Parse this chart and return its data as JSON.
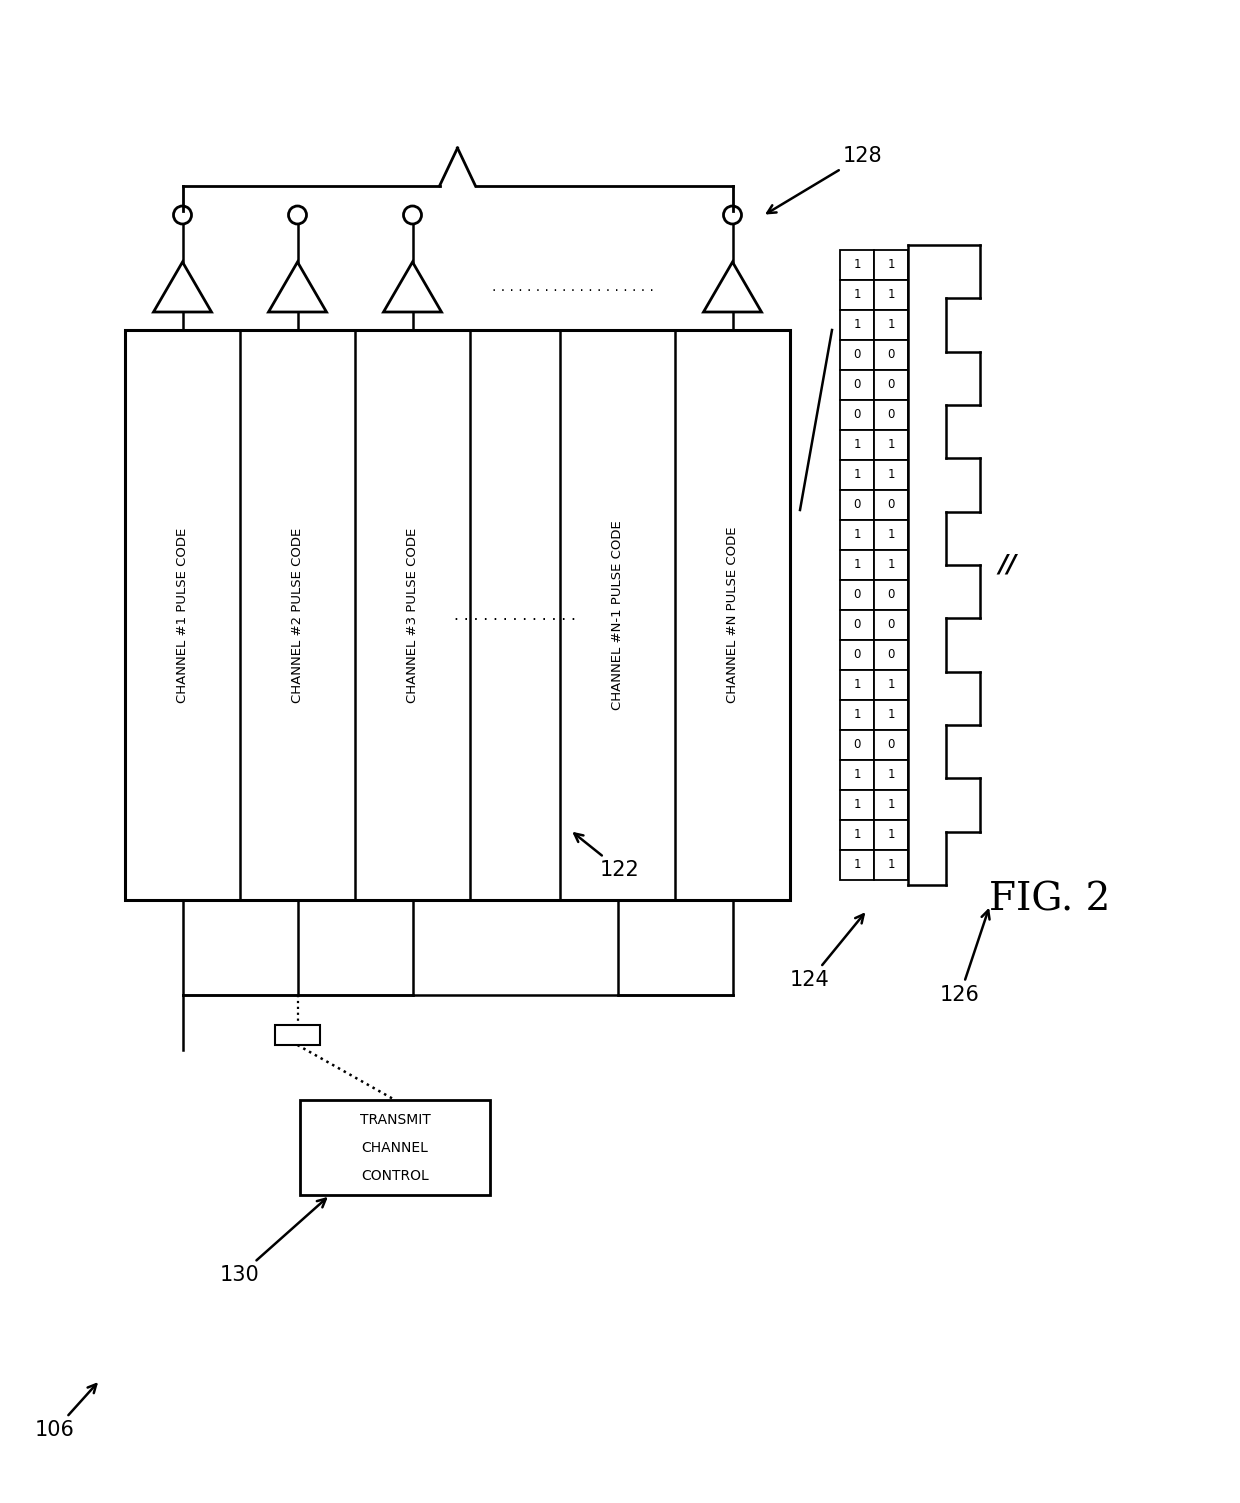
{
  "bg_color": "#ffffff",
  "fig_label": "FIG. 2",
  "channel_labels": [
    "CHANNEL #1 PULSE CODE",
    "CHANNEL #2 PULSE CODE",
    "CHANNEL #3 PULSE CODE",
    "CHANNEL #N-1 PULSE CODE",
    "CHANNEL #N PULSE CODE"
  ],
  "tcc_lines": [
    "TRANSMIT",
    "CHANNEL",
    "CONTROL"
  ],
  "bits_col1": [
    1,
    1,
    1,
    0,
    0,
    0,
    1,
    1,
    0,
    1,
    1,
    0,
    0,
    0,
    1,
    1,
    0,
    1,
    1,
    1,
    1
  ],
  "bits_col2": [
    1,
    1,
    1,
    0,
    0,
    0,
    1,
    1,
    0,
    1,
    1,
    0,
    0,
    0,
    1,
    1,
    0,
    1,
    1,
    1,
    1
  ],
  "label_106": "106",
  "label_122": "122",
  "label_124": "124",
  "label_126": "126",
  "label_128": "128",
  "label_130": "130"
}
